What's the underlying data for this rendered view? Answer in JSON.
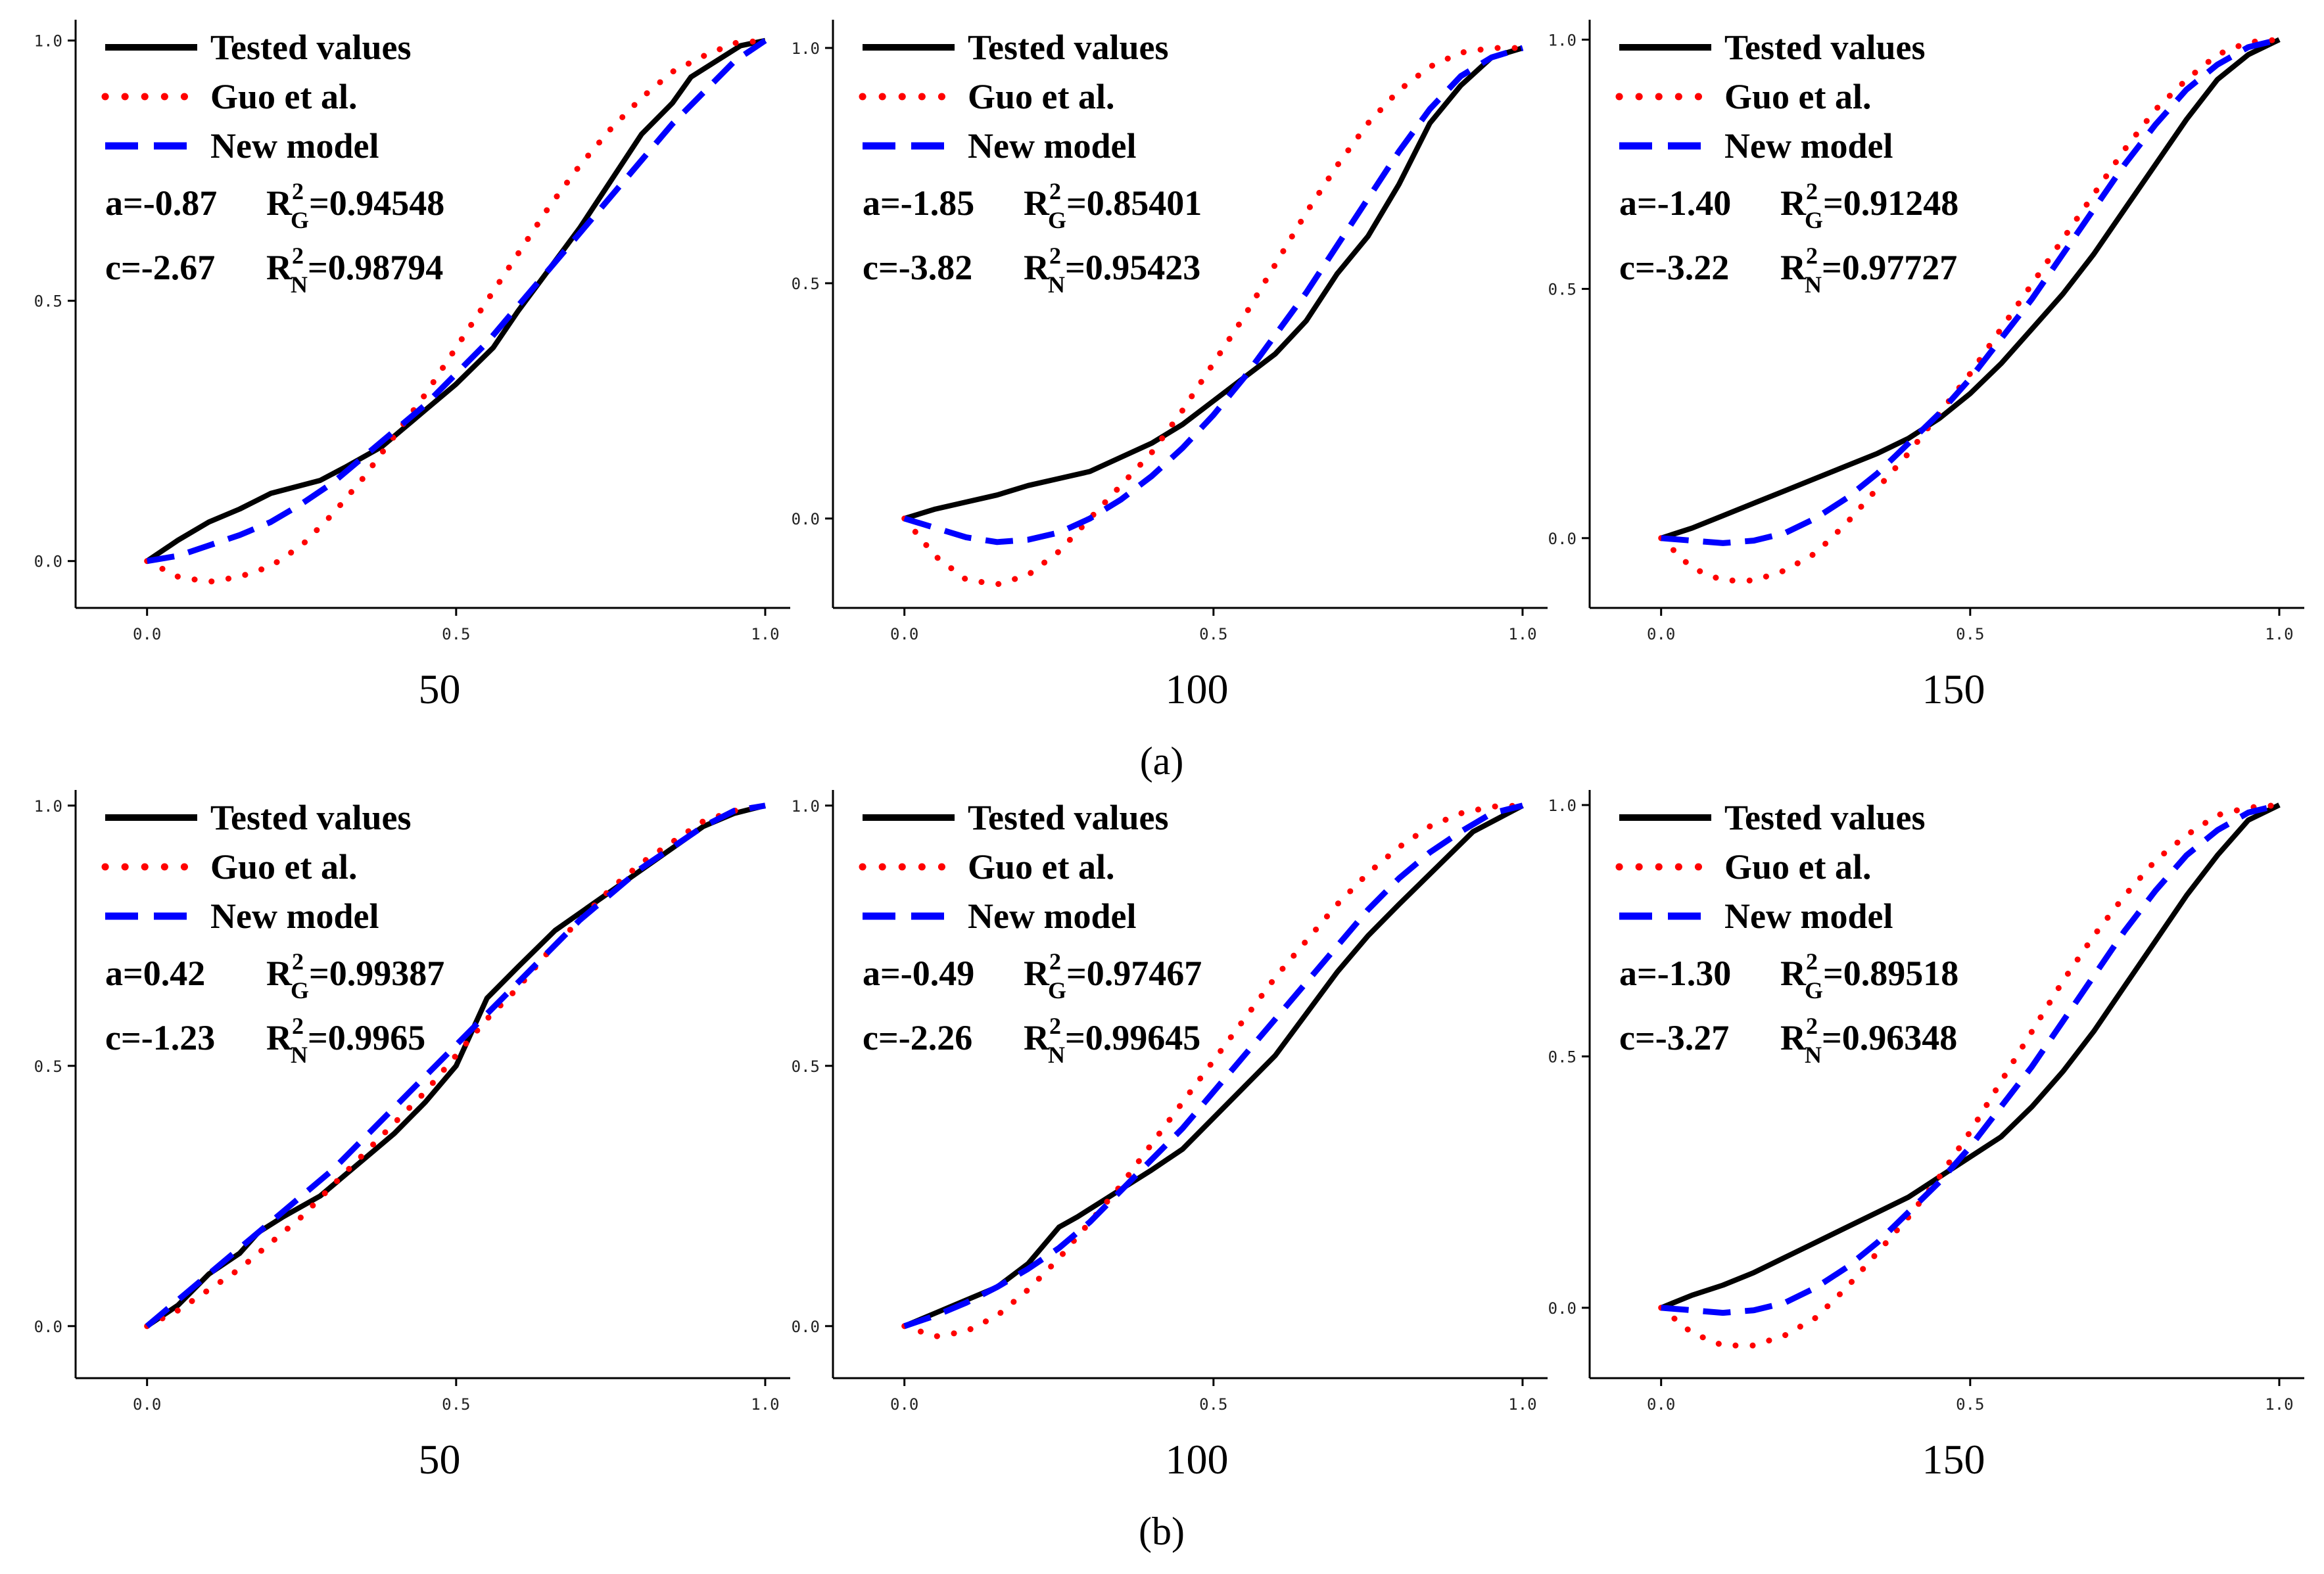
{
  "colors": {
    "tested": "#000000",
    "guo": "#ff0000",
    "new_model": "#0000ff",
    "axis": "#000000"
  },
  "groups": [
    {
      "label": "(a)",
      "row": 0
    },
    {
      "label": "(b)",
      "row": 1
    }
  ],
  "legend_labels": {
    "tested": "Tested values",
    "guo": "Guo et al.",
    "new_model": "New model"
  },
  "chart_data": [
    {
      "type": "line",
      "group": "(a)",
      "xlabel": "50",
      "xlim": [
        0,
        1
      ],
      "ylim": [
        -0.09,
        1.04
      ],
      "xticks": [
        "0.0",
        "0.5",
        "1.0"
      ],
      "yticks": [
        "0.0",
        "0.5",
        "1.0"
      ],
      "ytick_values": [
        0,
        0.5,
        1
      ],
      "a_label": "a=-0.87",
      "R2G_value": "=0.94548",
      "c_label": "c=-2.67",
      "R2N_value": "=0.98794",
      "series": [
        {
          "name": "Tested values",
          "x": [
            0,
            0.05,
            0.1,
            0.15,
            0.2,
            0.28,
            0.32,
            0.38,
            0.45,
            0.5,
            0.56,
            0.6,
            0.65,
            0.7,
            0.75,
            0.8,
            0.85,
            0.88,
            0.92,
            0.96,
            1.0
          ],
          "y": [
            0,
            0.04,
            0.075,
            0.1,
            0.13,
            0.155,
            0.18,
            0.22,
            0.29,
            0.34,
            0.41,
            0.48,
            0.56,
            0.64,
            0.73,
            0.82,
            0.88,
            0.93,
            0.96,
            0.99,
            1.0
          ]
        },
        {
          "name": "Guo et al.",
          "x": [
            0,
            0.05,
            0.1,
            0.15,
            0.2,
            0.25,
            0.3,
            0.35,
            0.4,
            0.45,
            0.5,
            0.55,
            0.6,
            0.65,
            0.7,
            0.75,
            0.8,
            0.85,
            0.9,
            0.95,
            1.0
          ],
          "y": [
            0,
            -0.03,
            -0.04,
            -0.03,
            -0.01,
            0.03,
            0.09,
            0.16,
            0.24,
            0.32,
            0.41,
            0.5,
            0.59,
            0.68,
            0.76,
            0.83,
            0.89,
            0.94,
            0.97,
            0.995,
            1.0
          ]
        },
        {
          "name": "New model",
          "x": [
            0,
            0.05,
            0.1,
            0.15,
            0.2,
            0.25,
            0.3,
            0.35,
            0.4,
            0.45,
            0.5,
            0.55,
            0.6,
            0.65,
            0.7,
            0.75,
            0.8,
            0.85,
            0.9,
            0.95,
            1.0
          ],
          "y": [
            0,
            0.01,
            0.03,
            0.05,
            0.075,
            0.11,
            0.15,
            0.2,
            0.25,
            0.3,
            0.36,
            0.42,
            0.49,
            0.56,
            0.63,
            0.7,
            0.77,
            0.84,
            0.9,
            0.96,
            1.0
          ]
        }
      ]
    },
    {
      "type": "line",
      "group": "(a)",
      "xlabel": "100",
      "xlim": [
        0,
        1
      ],
      "ylim": [
        -0.19,
        1.06
      ],
      "xticks": [
        "0.0",
        "0.5",
        "1.0"
      ],
      "yticks": [
        "0.0",
        "0.5",
        "1.0"
      ],
      "ytick_values": [
        0,
        0.5,
        1
      ],
      "a_label": "a=-1.85",
      "R2G_value": "=0.85401",
      "c_label": "c=-3.82",
      "R2N_value": "=0.95423",
      "series": [
        {
          "name": "Tested values",
          "x": [
            0,
            0.05,
            0.1,
            0.15,
            0.2,
            0.25,
            0.3,
            0.35,
            0.4,
            0.45,
            0.5,
            0.55,
            0.6,
            0.65,
            0.7,
            0.75,
            0.8,
            0.85,
            0.9,
            0.95,
            1.0
          ],
          "y": [
            0,
            0.02,
            0.035,
            0.05,
            0.07,
            0.085,
            0.1,
            0.13,
            0.16,
            0.2,
            0.25,
            0.3,
            0.35,
            0.42,
            0.52,
            0.6,
            0.71,
            0.84,
            0.92,
            0.98,
            1.0
          ]
        },
        {
          "name": "Guo et al.",
          "x": [
            0,
            0.05,
            0.1,
            0.15,
            0.2,
            0.25,
            0.3,
            0.35,
            0.4,
            0.45,
            0.5,
            0.55,
            0.6,
            0.65,
            0.7,
            0.75,
            0.8,
            0.85,
            0.9,
            0.95,
            1.0
          ],
          "y": [
            0,
            -0.08,
            -0.13,
            -0.14,
            -0.12,
            -0.07,
            0.0,
            0.07,
            0.14,
            0.23,
            0.33,
            0.43,
            0.54,
            0.65,
            0.75,
            0.84,
            0.91,
            0.96,
            0.99,
            1.0,
            1.0
          ]
        },
        {
          "name": "New model",
          "x": [
            0,
            0.05,
            0.1,
            0.15,
            0.2,
            0.25,
            0.3,
            0.35,
            0.4,
            0.45,
            0.5,
            0.55,
            0.6,
            0.65,
            0.7,
            0.75,
            0.8,
            0.85,
            0.9,
            0.95,
            1.0
          ],
          "y": [
            0,
            -0.02,
            -0.04,
            -0.05,
            -0.045,
            -0.03,
            0.0,
            0.04,
            0.09,
            0.15,
            0.22,
            0.3,
            0.39,
            0.48,
            0.58,
            0.68,
            0.78,
            0.87,
            0.94,
            0.98,
            1.0
          ]
        }
      ]
    },
    {
      "type": "line",
      "group": "(a)",
      "xlabel": "150",
      "xlim": [
        0,
        1
      ],
      "ylim": [
        -0.14,
        1.04
      ],
      "xticks": [
        "0.0",
        "0.5",
        "1.0"
      ],
      "yticks": [
        "0.0",
        "0.5",
        "1.0"
      ],
      "ytick_values": [
        0,
        0.5,
        1
      ],
      "a_label": "a=-1.40",
      "R2G_value": "=0.91248",
      "c_label": "c=-3.22",
      "R2N_value": "=0.97727",
      "series": [
        {
          "name": "Tested values",
          "x": [
            0,
            0.05,
            0.1,
            0.15,
            0.2,
            0.25,
            0.3,
            0.35,
            0.4,
            0.45,
            0.5,
            0.55,
            0.6,
            0.65,
            0.7,
            0.75,
            0.8,
            0.85,
            0.9,
            0.95,
            1.0
          ],
          "y": [
            0,
            0.02,
            0.045,
            0.07,
            0.095,
            0.12,
            0.145,
            0.17,
            0.2,
            0.24,
            0.29,
            0.35,
            0.42,
            0.49,
            0.57,
            0.66,
            0.75,
            0.84,
            0.92,
            0.97,
            1.0
          ]
        },
        {
          "name": "Guo et al.",
          "x": [
            0,
            0.05,
            0.1,
            0.15,
            0.2,
            0.25,
            0.3,
            0.35,
            0.4,
            0.45,
            0.5,
            0.55,
            0.6,
            0.65,
            0.7,
            0.75,
            0.8,
            0.85,
            0.9,
            0.95,
            1.0
          ],
          "y": [
            0,
            -0.06,
            -0.085,
            -0.085,
            -0.065,
            -0.03,
            0.03,
            0.1,
            0.17,
            0.25,
            0.33,
            0.42,
            0.51,
            0.6,
            0.69,
            0.78,
            0.86,
            0.92,
            0.97,
            0.995,
            1.0
          ]
        },
        {
          "name": "New model",
          "x": [
            0,
            0.05,
            0.1,
            0.15,
            0.2,
            0.25,
            0.3,
            0.35,
            0.4,
            0.45,
            0.5,
            0.55,
            0.6,
            0.65,
            0.7,
            0.75,
            0.8,
            0.85,
            0.9,
            0.95,
            1.0
          ],
          "y": [
            0,
            -0.005,
            -0.01,
            -0.005,
            0.01,
            0.04,
            0.08,
            0.13,
            0.19,
            0.25,
            0.32,
            0.4,
            0.48,
            0.57,
            0.66,
            0.75,
            0.83,
            0.9,
            0.95,
            0.985,
            1.0
          ]
        }
      ]
    },
    {
      "type": "line",
      "group": "(b)",
      "xlabel": "50",
      "xlim": [
        0,
        1
      ],
      "ylim": [
        -0.1,
        1.03
      ],
      "xticks": [
        "0.0",
        "0.5",
        "1.0"
      ],
      "yticks": [
        "0.0",
        "0.5",
        "1.0"
      ],
      "ytick_values": [
        0,
        0.5,
        1
      ],
      "a_label": "a=0.42",
      "R2G_value": "=0.99387",
      "c_label": "c=-1.23",
      "R2N_value": "=0.9965",
      "series": [
        {
          "name": "Tested values",
          "x": [
            0,
            0.05,
            0.1,
            0.15,
            0.18,
            0.22,
            0.28,
            0.32,
            0.36,
            0.4,
            0.45,
            0.5,
            0.55,
            0.6,
            0.66,
            0.72,
            0.78,
            0.84,
            0.9,
            0.95,
            1.0
          ],
          "y": [
            0,
            0.04,
            0.1,
            0.14,
            0.18,
            0.21,
            0.25,
            0.29,
            0.33,
            0.37,
            0.43,
            0.5,
            0.63,
            0.69,
            0.76,
            0.81,
            0.86,
            0.91,
            0.96,
            0.985,
            1.0
          ]
        },
        {
          "name": "Guo et al.",
          "x": [
            0,
            0.05,
            0.1,
            0.15,
            0.2,
            0.25,
            0.3,
            0.35,
            0.4,
            0.45,
            0.5,
            0.55,
            0.6,
            0.65,
            0.7,
            0.75,
            0.8,
            0.85,
            0.9,
            0.95,
            1.0
          ],
          "y": [
            0,
            0.03,
            0.07,
            0.11,
            0.16,
            0.21,
            0.27,
            0.33,
            0.39,
            0.45,
            0.52,
            0.59,
            0.65,
            0.72,
            0.78,
            0.84,
            0.89,
            0.93,
            0.97,
            0.99,
            1.0
          ]
        },
        {
          "name": "New model",
          "x": [
            0,
            0.05,
            0.1,
            0.15,
            0.2,
            0.25,
            0.3,
            0.35,
            0.4,
            0.45,
            0.5,
            0.55,
            0.6,
            0.65,
            0.7,
            0.75,
            0.8,
            0.85,
            0.9,
            0.95,
            1.0
          ],
          "y": [
            0,
            0.05,
            0.1,
            0.15,
            0.2,
            0.25,
            0.3,
            0.36,
            0.42,
            0.48,
            0.54,
            0.6,
            0.66,
            0.72,
            0.78,
            0.83,
            0.88,
            0.92,
            0.96,
            0.99,
            1.0
          ]
        }
      ]
    },
    {
      "type": "line",
      "group": "(b)",
      "xlabel": "100",
      "xlim": [
        0,
        1
      ],
      "ylim": [
        -0.1,
        1.03
      ],
      "xticks": [
        "0.0",
        "0.5",
        "1.0"
      ],
      "yticks": [
        "0.0",
        "0.5",
        "1.0"
      ],
      "ytick_values": [
        0,
        0.5,
        1
      ],
      "a_label": "a=-0.49",
      "R2G_value": "=0.97467",
      "c_label": "c=-2.26",
      "R2N_value": "=0.99645",
      "series": [
        {
          "name": "Tested values",
          "x": [
            0,
            0.05,
            0.1,
            0.15,
            0.2,
            0.25,
            0.28,
            0.32,
            0.36,
            0.4,
            0.45,
            0.5,
            0.55,
            0.6,
            0.65,
            0.7,
            0.75,
            0.8,
            0.86,
            0.92,
            1.0
          ],
          "y": [
            0,
            0.025,
            0.05,
            0.075,
            0.12,
            0.19,
            0.21,
            0.24,
            0.27,
            0.3,
            0.34,
            0.4,
            0.46,
            0.52,
            0.6,
            0.68,
            0.75,
            0.81,
            0.88,
            0.95,
            1.0
          ]
        },
        {
          "name": "Guo et al.",
          "x": [
            0,
            0.05,
            0.1,
            0.15,
            0.2,
            0.25,
            0.3,
            0.35,
            0.4,
            0.45,
            0.5,
            0.55,
            0.6,
            0.65,
            0.7,
            0.75,
            0.8,
            0.85,
            0.9,
            0.95,
            1.0
          ],
          "y": [
            0,
            -0.02,
            -0.01,
            0.02,
            0.07,
            0.13,
            0.2,
            0.27,
            0.35,
            0.43,
            0.51,
            0.59,
            0.67,
            0.74,
            0.81,
            0.87,
            0.92,
            0.96,
            0.985,
            0.998,
            1.0
          ]
        },
        {
          "name": "New model",
          "x": [
            0,
            0.05,
            0.1,
            0.15,
            0.2,
            0.25,
            0.3,
            0.35,
            0.4,
            0.45,
            0.5,
            0.55,
            0.6,
            0.65,
            0.7,
            0.75,
            0.8,
            0.85,
            0.9,
            0.95,
            1.0
          ],
          "y": [
            0,
            0.02,
            0.045,
            0.075,
            0.11,
            0.15,
            0.2,
            0.26,
            0.32,
            0.38,
            0.45,
            0.52,
            0.59,
            0.66,
            0.73,
            0.8,
            0.86,
            0.91,
            0.95,
            0.985,
            1.0
          ]
        }
      ]
    },
    {
      "type": "line",
      "group": "(b)",
      "xlabel": "150",
      "xlim": [
        0,
        1
      ],
      "ylim": [
        -0.14,
        1.03
      ],
      "xticks": [
        "0.0",
        "0.5",
        "1.0"
      ],
      "yticks": [
        "0.0",
        "0.5",
        "1.0"
      ],
      "ytick_values": [
        0,
        0.5,
        1
      ],
      "a_label": "a=-1.30",
      "R2G_value": "=0.89518",
      "c_label": "c=-3.27",
      "R2N_value": "=0.96348",
      "series": [
        {
          "name": "Tested values",
          "x": [
            0,
            0.05,
            0.1,
            0.15,
            0.2,
            0.25,
            0.3,
            0.35,
            0.4,
            0.45,
            0.5,
            0.55,
            0.6,
            0.65,
            0.7,
            0.75,
            0.8,
            0.85,
            0.9,
            0.95,
            1.0
          ],
          "y": [
            0,
            0.025,
            0.045,
            0.07,
            0.1,
            0.13,
            0.16,
            0.19,
            0.22,
            0.26,
            0.3,
            0.34,
            0.4,
            0.47,
            0.55,
            0.64,
            0.73,
            0.82,
            0.9,
            0.97,
            1.0
          ]
        },
        {
          "name": "Guo et al.",
          "x": [
            0,
            0.05,
            0.1,
            0.15,
            0.2,
            0.25,
            0.3,
            0.35,
            0.4,
            0.45,
            0.5,
            0.55,
            0.6,
            0.65,
            0.7,
            0.75,
            0.8,
            0.85,
            0.9,
            0.95,
            1.0
          ],
          "y": [
            0,
            -0.05,
            -0.075,
            -0.075,
            -0.055,
            -0.02,
            0.04,
            0.11,
            0.18,
            0.26,
            0.35,
            0.45,
            0.55,
            0.65,
            0.74,
            0.82,
            0.89,
            0.94,
            0.98,
            0.995,
            1.0
          ]
        },
        {
          "name": "New model",
          "x": [
            0,
            0.05,
            0.1,
            0.15,
            0.2,
            0.25,
            0.3,
            0.35,
            0.4,
            0.45,
            0.5,
            0.55,
            0.6,
            0.65,
            0.7,
            0.75,
            0.8,
            0.85,
            0.9,
            0.95,
            1.0
          ],
          "y": [
            0,
            -0.005,
            -0.01,
            -0.005,
            0.01,
            0.04,
            0.08,
            0.13,
            0.19,
            0.25,
            0.32,
            0.4,
            0.48,
            0.57,
            0.66,
            0.75,
            0.83,
            0.9,
            0.95,
            0.985,
            1.0
          ]
        }
      ]
    }
  ]
}
